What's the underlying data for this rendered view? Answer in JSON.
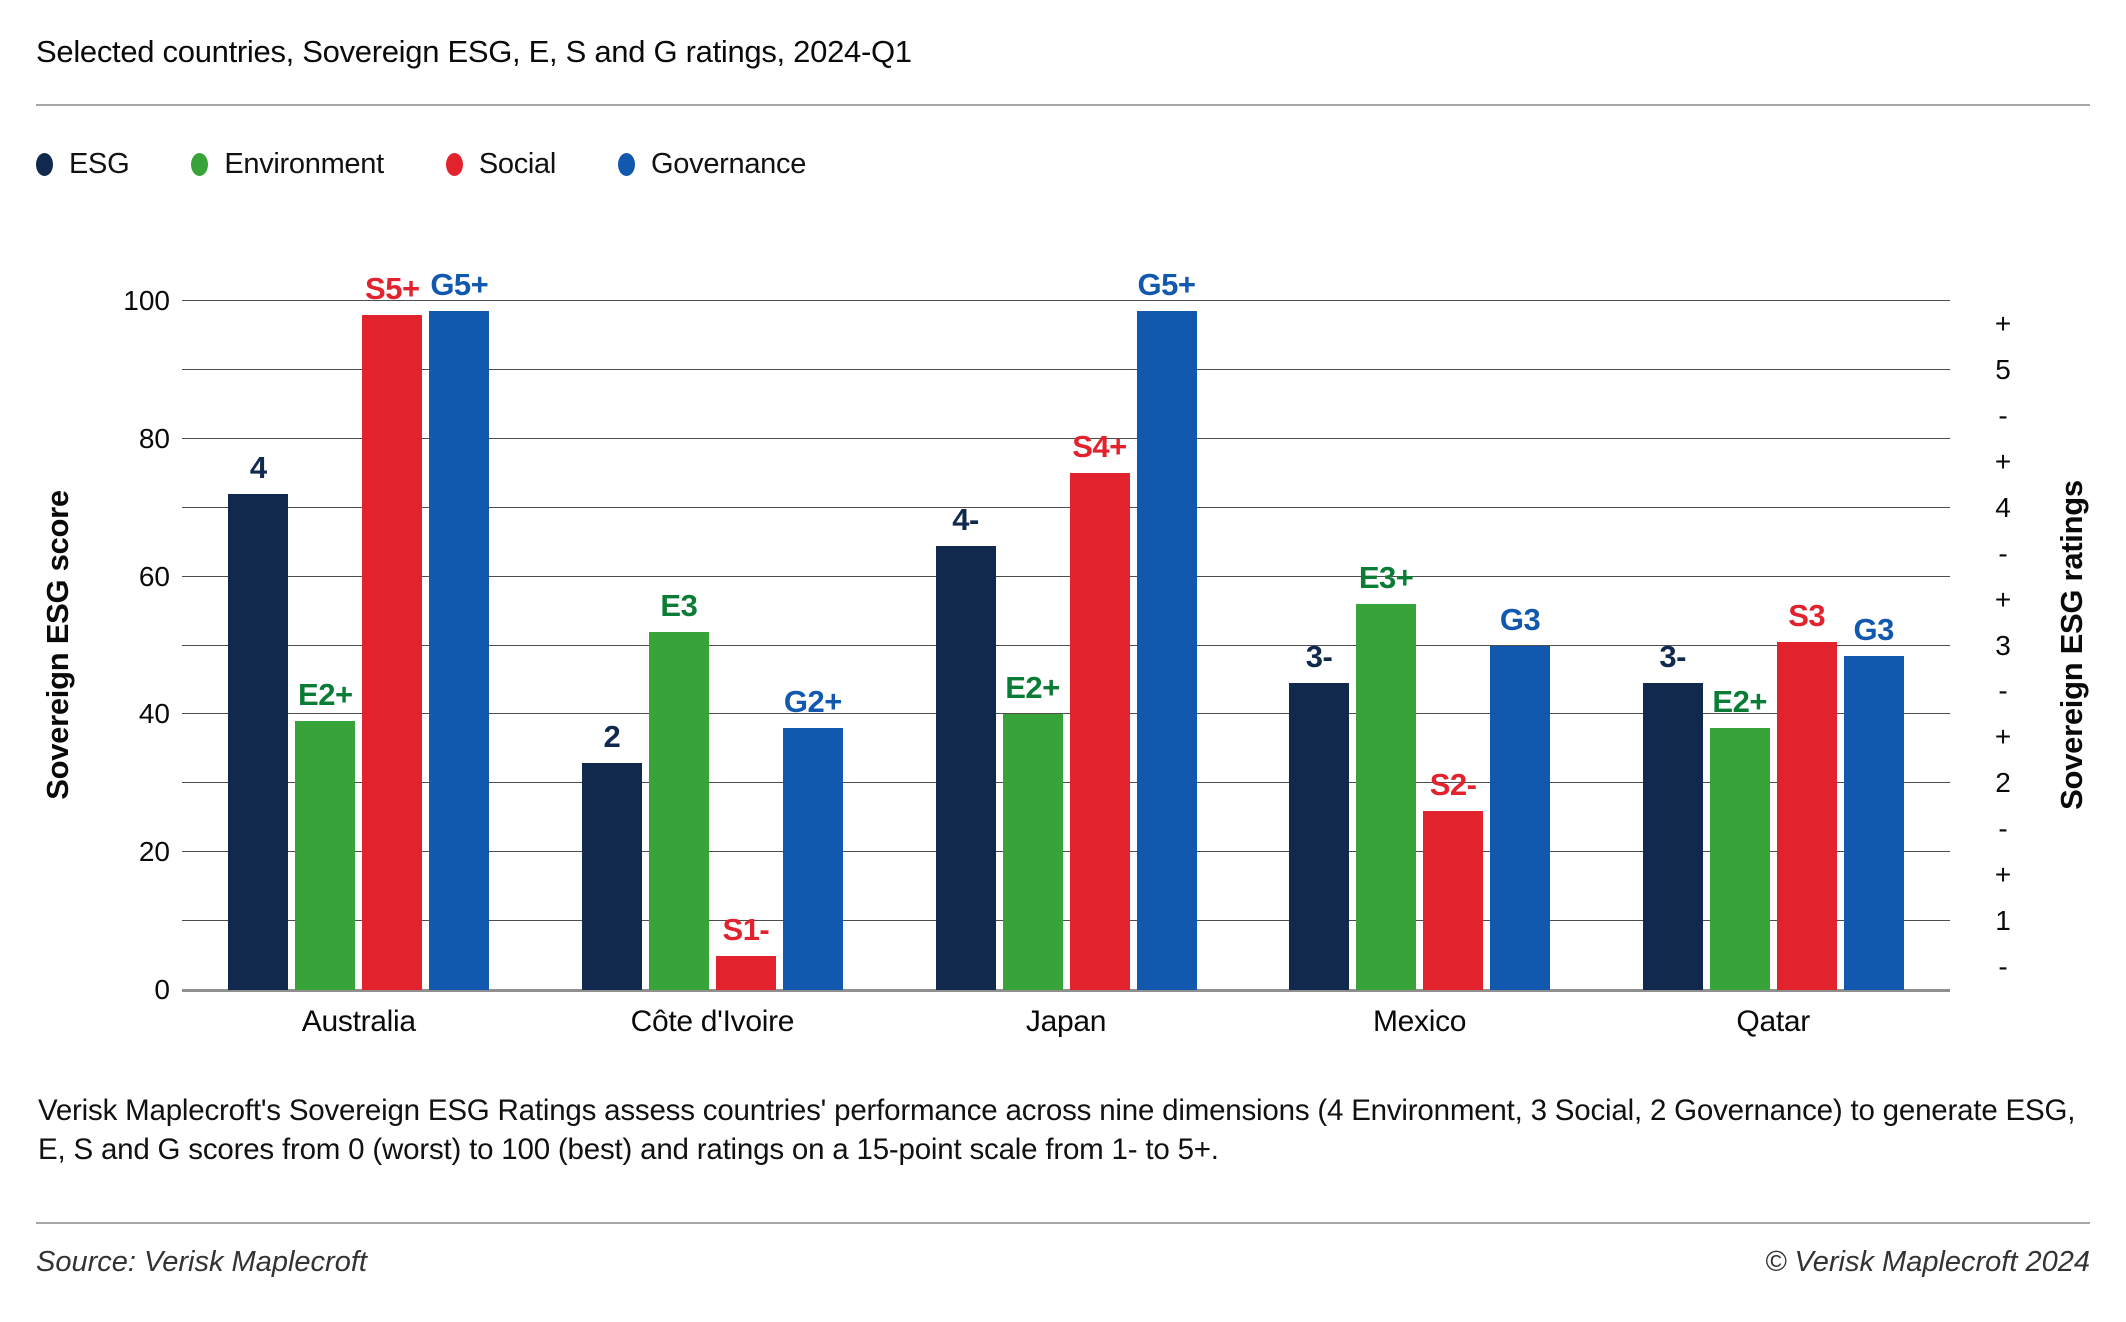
{
  "title": "Selected countries, Sovereign ESG, E, S and G ratings, 2024-Q1",
  "footnote": "Verisk Maplecroft's Sovereign ESG Ratings assess countries' performance across nine dimensions (4 Environment, 3 Social, 2 Governance) to generate ESG, E, S and G scores from 0 (worst) to 100 (best) and ratings on a 15-point scale from 1- to 5+.",
  "source": "Source: Verisk Maplecroft",
  "copyright": "© Verisk Maplecroft 2024",
  "colors": {
    "esg_navy": "#12294E",
    "environment_green": "#38A338",
    "social_red": "#E2232E",
    "governance_blue": "#1158AE",
    "environment_label_green": "#0A7C35",
    "gridline": "#4D4D4D",
    "axis_line": "#8F8F8F"
  },
  "chart_data": {
    "type": "bar",
    "title": "Selected countries, Sovereign ESG, E, S and G ratings, 2024-Q1",
    "categories": [
      "Australia",
      "Côte d'Ivoire",
      "Japan",
      "Mexico",
      "Qatar"
    ],
    "series": [
      {
        "name": "ESG",
        "color": "#12294E",
        "label_color": "#12294E",
        "values": [
          72,
          33,
          64.5,
          44.5,
          44.5
        ],
        "labels": [
          "4",
          "2",
          "4-",
          "3-",
          "3-"
        ]
      },
      {
        "name": "Environment",
        "color": "#38A338",
        "label_color": "#0A7C35",
        "values": [
          39,
          52,
          40,
          56,
          38
        ],
        "labels": [
          "E2+",
          "E3",
          "E2+",
          "E3+",
          "E2+"
        ]
      },
      {
        "name": "Social",
        "color": "#E2232E",
        "label_color": "#E2232E",
        "values": [
          98,
          5,
          75,
          26,
          50.5
        ],
        "labels": [
          "S5+",
          "S1-",
          "S4+",
          "S2-",
          "S3"
        ]
      },
      {
        "name": "Governance",
        "color": "#1158AE",
        "label_color": "#1158AE",
        "values": [
          98.5,
          38,
          98.5,
          50,
          48.5
        ],
        "labels": [
          "G5+",
          "G2+",
          "G5+",
          "G3",
          "G3"
        ]
      }
    ],
    "ylabel_left": "Sovereign ESG score",
    "ylabel_right": "Sovereign ESG ratings",
    "ylim": [
      0,
      100
    ],
    "y_ticks_left": [
      0,
      20,
      40,
      60,
      80,
      100
    ],
    "gridline_step": 10,
    "y_ticks_right": [
      "+",
      "5",
      "-",
      "+",
      "4",
      "-",
      "+",
      "3",
      "-",
      "+",
      "2",
      "-",
      "+",
      "1",
      "-"
    ],
    "grid": "horizontal, every 10 score units",
    "legend_position": "top-left"
  }
}
